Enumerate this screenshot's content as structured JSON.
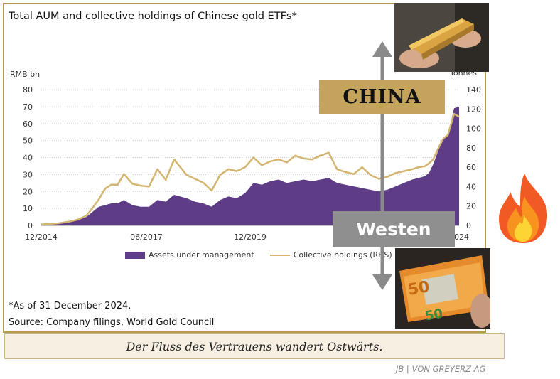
{
  "title": "Total AUM and collective holdings of Chinese gold ETFs*",
  "left_unit": "RMB bn",
  "right_unit": "Tonnes",
  "footnote": "*As of 31 December 2024.",
  "source": "Source: Company filings, World Gold Council",
  "overlay": {
    "china_label": "CHINA",
    "west_label": "Westen"
  },
  "caption": "Der Fluss des Vertrauens wandert Ostwärts.",
  "credit": "JB | VON GREYERZ AG",
  "colors": {
    "aum": "#5e3d86",
    "holdings": "#d3b56f",
    "china": "#c4a35c",
    "west": "#8f8f8f",
    "arrow": "#8a8a8a"
  },
  "chart_data": {
    "type": "area",
    "title": "Total AUM and collective holdings of Chinese gold ETFs*",
    "ylabel": "RMB bn",
    "y2label": "Tonnes",
    "ylim": [
      0,
      80
    ],
    "y2lim": [
      0,
      140
    ],
    "yticks": [
      0,
      10,
      20,
      30,
      40,
      50,
      60,
      70,
      80
    ],
    "y2ticks": [
      0,
      20,
      40,
      60,
      80,
      100,
      120,
      140
    ],
    "xticks": [
      "12/2014",
      "06/2017",
      "12/2019",
      "2024"
    ],
    "x_range": [
      2014.92,
      2024.92
    ],
    "legend": "bottom",
    "grid": true,
    "series": [
      {
        "name": "Assets under management",
        "axis": "left",
        "style": "area",
        "x": [
          2014.92,
          2015.3,
          2015.6,
          2015.8,
          2016.0,
          2016.15,
          2016.3,
          2016.45,
          2016.6,
          2016.75,
          2016.9,
          2017.1,
          2017.3,
          2017.5,
          2017.7,
          2017.9,
          2018.1,
          2018.25,
          2018.4,
          2018.6,
          2018.8,
          2019.0,
          2019.2,
          2019.4,
          2019.6,
          2019.8,
          2020.0,
          2020.2,
          2020.4,
          2020.6,
          2020.8,
          2021.0,
          2021.2,
          2021.4,
          2021.6,
          2021.8,
          2022.0,
          2022.2,
          2022.4,
          2022.6,
          2022.8,
          2023.0,
          2023.2,
          2023.4,
          2023.6,
          2023.8,
          2023.95,
          2024.1,
          2024.2,
          2024.3,
          2024.45,
          2024.55,
          2024.65,
          2024.8,
          2024.92
        ],
        "values": [
          0.5,
          1,
          2,
          3,
          5,
          8,
          11,
          12,
          13,
          13,
          15,
          12,
          11,
          11,
          15,
          14,
          18,
          17,
          16,
          14,
          13,
          11,
          15,
          17,
          16,
          19,
          25,
          24,
          26,
          27,
          25,
          26,
          27,
          26,
          27,
          28,
          25,
          24,
          23,
          22,
          21,
          20,
          21,
          23,
          25,
          27,
          28,
          29,
          31,
          36,
          46,
          52,
          53,
          69,
          70
        ]
      },
      {
        "name": "Collective holdings (RHS)",
        "axis": "right",
        "style": "line",
        "x": [
          2014.92,
          2015.3,
          2015.6,
          2015.8,
          2016.0,
          2016.15,
          2016.3,
          2016.45,
          2016.6,
          2016.75,
          2016.9,
          2017.1,
          2017.3,
          2017.5,
          2017.7,
          2017.9,
          2018.1,
          2018.25,
          2018.4,
          2018.6,
          2018.8,
          2019.0,
          2019.2,
          2019.4,
          2019.6,
          2019.8,
          2020.0,
          2020.2,
          2020.4,
          2020.6,
          2020.8,
          2021.0,
          2021.2,
          2021.4,
          2021.6,
          2021.8,
          2022.0,
          2022.2,
          2022.4,
          2022.6,
          2022.8,
          2023.0,
          2023.2,
          2023.4,
          2023.6,
          2023.8,
          2023.95,
          2024.1,
          2024.2,
          2024.3,
          2024.45,
          2024.55,
          2024.65,
          2024.8,
          2024.92
        ],
        "values": [
          1,
          2,
          4,
          6,
          10,
          18,
          27,
          38,
          42,
          42,
          53,
          43,
          41,
          40,
          58,
          47,
          68,
          60,
          52,
          48,
          44,
          36,
          52,
          58,
          56,
          60,
          70,
          62,
          66,
          68,
          65,
          72,
          69,
          68,
          72,
          75,
          58,
          55,
          53,
          60,
          52,
          48,
          50,
          54,
          56,
          58,
          60,
          61,
          64,
          68,
          82,
          90,
          93,
          115,
          112
        ]
      }
    ]
  }
}
